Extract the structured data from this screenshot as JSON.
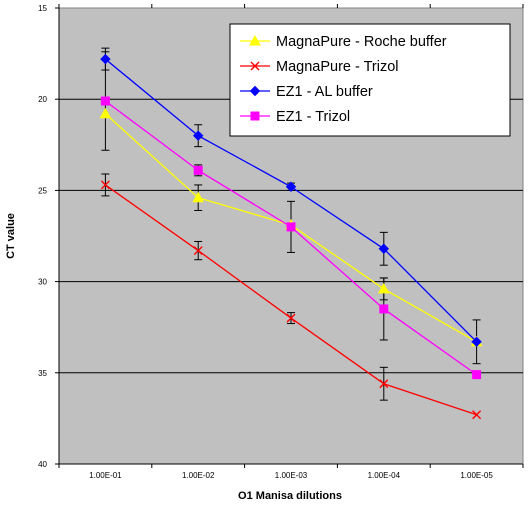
{
  "chart_data": {
    "type": "line",
    "title": "",
    "xlabel": "O1 Manisa dilutions",
    "ylabel": "CT value",
    "categories": [
      "1.00E-01",
      "1.00E-02",
      "1.00E-03",
      "1.00E-04",
      "1.00E-05"
    ],
    "ylim": [
      15,
      40
    ],
    "y_inverted": true,
    "yticks": [
      "15",
      "20",
      "25",
      "30",
      "35",
      "40"
    ],
    "grid": "horizontal",
    "legend_position": "top-right",
    "series": [
      {
        "name": "MagnaPure - Roche buffer",
        "color": "#ffff00",
        "marker": "triangle",
        "values": [
          20.8,
          25.4,
          26.9,
          30.4,
          33.3
        ],
        "error": [
          null,
          0.7,
          null,
          0.6,
          null
        ]
      },
      {
        "name": "MagnaPure - Trizol",
        "color": "#ff0000",
        "marker": "x",
        "values": [
          24.7,
          28.3,
          32.0,
          35.6,
          37.3
        ],
        "error": [
          0.6,
          0.5,
          0.3,
          0.9,
          null
        ]
      },
      {
        "name": "EZ1 - AL buffer",
        "color": "#0000ff",
        "marker": "diamond",
        "values": [
          17.8,
          22.0,
          24.8,
          28.2,
          33.3
        ],
        "error": [
          0.6,
          0.6,
          0.2,
          0.9,
          1.2
        ]
      },
      {
        "name": "EZ1 - Trizol",
        "color": "#ff00ff",
        "marker": "square",
        "values": [
          20.1,
          23.9,
          27.0,
          31.5,
          35.1
        ],
        "error": [
          2.7,
          0.3,
          1.4,
          1.7,
          0.2
        ]
      }
    ]
  }
}
